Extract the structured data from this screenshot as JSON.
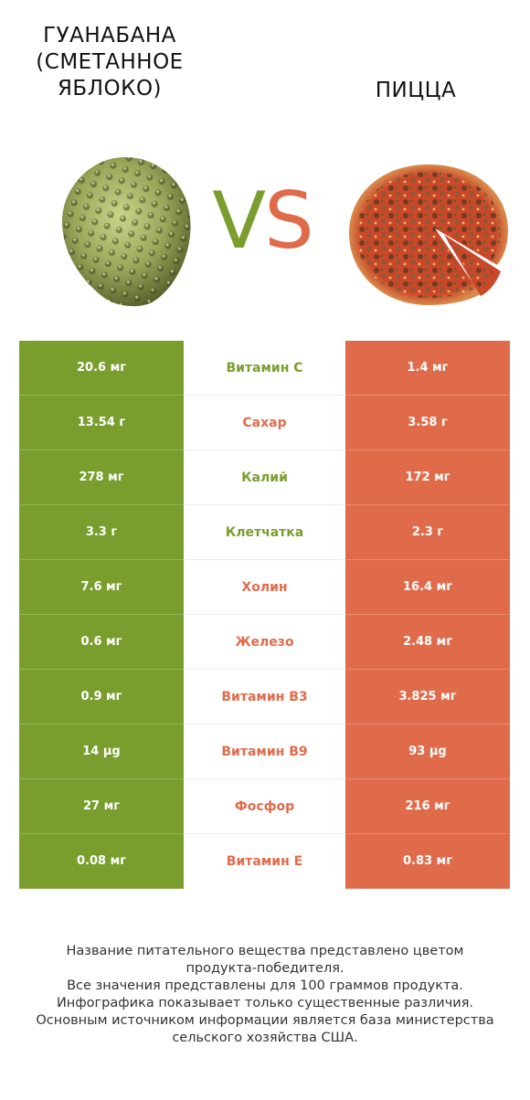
{
  "left_food": {
    "title_lines": [
      "ГУАНАБАНА",
      "(СМЕТАННОЕ",
      "ЯБЛОКО)"
    ],
    "color": "#7a9e2e",
    "image": "soursop-fruit"
  },
  "right_food": {
    "title_lines": [
      "ПИЦЦА"
    ],
    "color": "#e06b4b",
    "image": "pizza"
  },
  "vs": {
    "v": "V",
    "s": "S"
  },
  "rows": [
    {
      "nutrient": "Витамин C",
      "left": "20.6 мг",
      "right": "1.4 мг",
      "winner": "left"
    },
    {
      "nutrient": "Сахар",
      "left": "13.54 г",
      "right": "3.58 г",
      "winner": "right"
    },
    {
      "nutrient": "Калий",
      "left": "278 мг",
      "right": "172 мг",
      "winner": "left"
    },
    {
      "nutrient": "Клетчатка",
      "left": "3.3 г",
      "right": "2.3 г",
      "winner": "left"
    },
    {
      "nutrient": "Холин",
      "left": "7.6 мг",
      "right": "16.4 мг",
      "winner": "right"
    },
    {
      "nutrient": "Железо",
      "left": "0.6 мг",
      "right": "2.48 мг",
      "winner": "right"
    },
    {
      "nutrient": "Витамин B3",
      "left": "0.9 мг",
      "right": "3.825 мг",
      "winner": "right"
    },
    {
      "nutrient": "Витамин B9",
      "left": "14 µg",
      "right": "93 µg",
      "winner": "right"
    },
    {
      "nutrient": "Фосфор",
      "left": "27 мг",
      "right": "216 мг",
      "winner": "right"
    },
    {
      "nutrient": "Витамин E",
      "left": "0.08 мг",
      "right": "0.83 мг",
      "winner": "right"
    }
  ],
  "footer": [
    "Название питательного вещества представлено цветом",
    "продукта-победителя.",
    "Все значения представлены для 100 граммов продукта.",
    "Инфографика показывает только существенные различия.",
    "Основным источником информации является база министерства",
    "сельского хозяйства США."
  ]
}
